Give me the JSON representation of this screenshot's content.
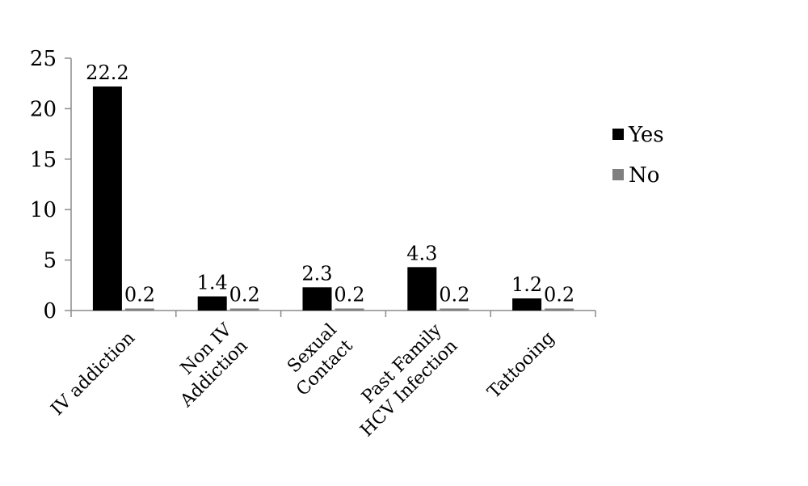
{
  "chart_data": {
    "type": "bar",
    "categories": [
      [
        "IV addiction"
      ],
      [
        "Non IV",
        "Addiction"
      ],
      [
        "Sexual",
        "Contact"
      ],
      [
        "Past Family",
        "HCV Infection"
      ],
      [
        "Tattooing"
      ]
    ],
    "series": [
      {
        "name": "Yes",
        "values": [
          22.2,
          1.4,
          2.3,
          4.3,
          1.2
        ],
        "color": "#000000"
      },
      {
        "name": "No",
        "values": [
          0.2,
          0.2,
          0.2,
          0.2,
          0.2
        ],
        "color": "#7f7f7f"
      }
    ],
    "y_ticks": [
      "0",
      "5",
      "10",
      "15",
      "20",
      "25"
    ],
    "ylim": [
      0,
      25
    ],
    "grid": false,
    "legend_position": "right"
  }
}
